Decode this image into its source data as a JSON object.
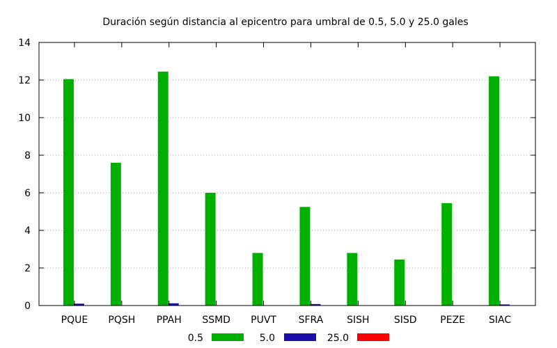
{
  "chart_data": {
    "type": "bar",
    "title": "Duración según distancia al epicentro para umbral de 0.5, 5.0 y 25.0 gales",
    "xlabel": "",
    "ylabel": "",
    "ylim": [
      0,
      14
    ],
    "yticks": [
      0,
      2,
      4,
      6,
      8,
      10,
      12,
      14
    ],
    "grid": true,
    "legend_position": "bottom",
    "categories": [
      "PQUE",
      "PQSH",
      "PPAH",
      "SSMD",
      "PUVT",
      "SFRA",
      "SISH",
      "SISD",
      "PEZE",
      "SIAC"
    ],
    "series": [
      {
        "name": "0.5",
        "color": "#00b000",
        "values": [
          12.05,
          7.6,
          12.45,
          6.0,
          2.8,
          5.25,
          2.8,
          2.45,
          5.45,
          12.2
        ]
      },
      {
        "name": "5.0",
        "color": "#1a0fa8",
        "values": [
          0.1,
          0.0,
          0.12,
          0.0,
          0.0,
          0.08,
          0.0,
          0.0,
          0.0,
          0.06
        ]
      },
      {
        "name": "25.0",
        "color": "#ff0000",
        "values": [
          0,
          0,
          0,
          0,
          0,
          0,
          0,
          0,
          0,
          0
        ]
      }
    ]
  }
}
